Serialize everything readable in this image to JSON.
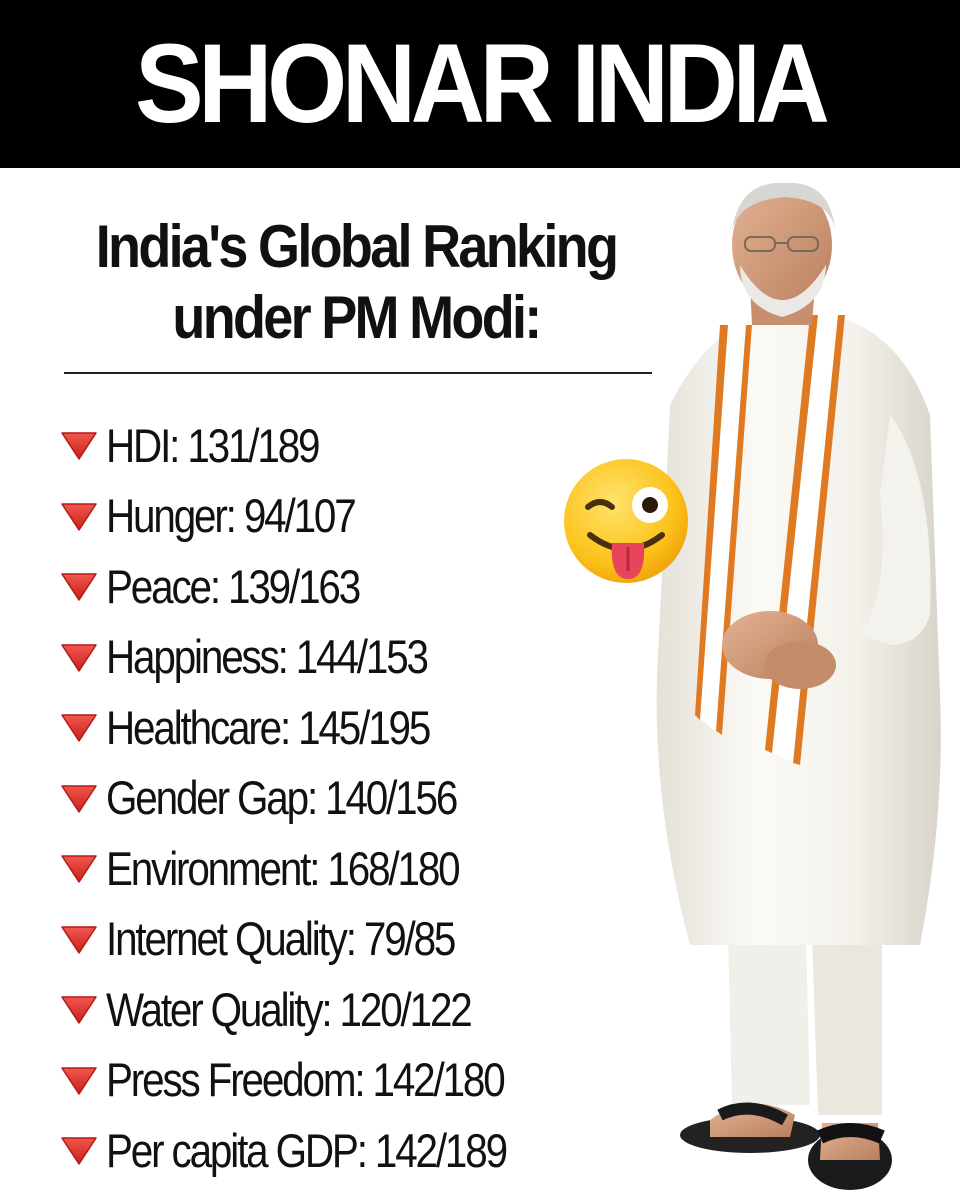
{
  "banner": {
    "title": "SHONAR INDIA"
  },
  "subtitle": {
    "line1": "India's Global Ranking",
    "line2": "under PM Modi:"
  },
  "stats": [
    "HDI: 131/189",
    "Hunger: 94/107",
    "Peace: 139/163",
    "Happiness: 144/153",
    "Healthcare: 145/195",
    "Gender Gap: 140/156",
    "Environment: 168/180",
    "Internet Quality: 79/85",
    "Water Quality: 120/122",
    "Press Freedom: 142/180",
    "Per capita GDP: 142/189"
  ],
  "icons": {
    "bullet": "red-down-triangle-icon",
    "emoji": "winking-face-with-tongue-icon"
  },
  "colors": {
    "banner": "#000000",
    "bullet": "#e0302a",
    "saffron": "#e07a22"
  }
}
